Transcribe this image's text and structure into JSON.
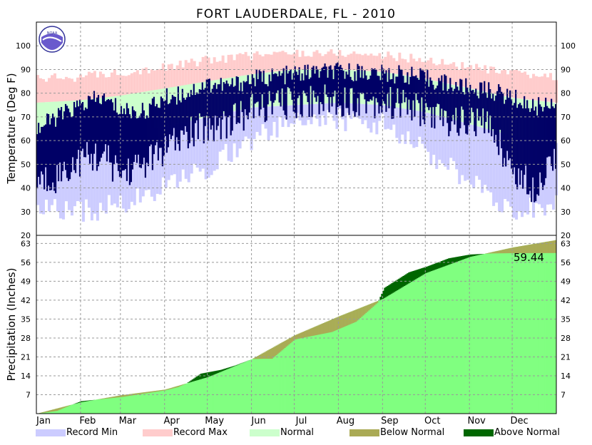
{
  "chart_data": [
    {
      "type": "area",
      "title": "FORT LAUDERDALE, FL - 2010",
      "ylabel": "Temperature (Deg F)",
      "ylim": [
        20,
        110
      ],
      "yticks": [
        20,
        30,
        40,
        50,
        60,
        70,
        80,
        90,
        100
      ],
      "categories": [
        "Jan",
        "Feb",
        "Mar",
        "Apr",
        "May",
        "Jun",
        "Jul",
        "Aug",
        "Sep",
        "Oct",
        "Nov",
        "Dec"
      ],
      "grid": true,
      "series": [
        {
          "name": "Record Max",
          "color": "#ffcccc",
          "x": [
            1,
            32,
            60,
            91,
            121,
            152,
            182,
            213,
            244,
            274,
            305,
            335,
            365
          ],
          "values": [
            86,
            87,
            89,
            91,
            94,
            96,
            97,
            97,
            96,
            94,
            91,
            88,
            87
          ]
        },
        {
          "name": "Normal",
          "color": "#ccffcc",
          "band": true,
          "x": [
            1,
            32,
            60,
            91,
            121,
            152,
            182,
            213,
            244,
            274,
            305,
            335,
            365
          ],
          "high": [
            76,
            77,
            79,
            82,
            85,
            88,
            90,
            90,
            89,
            86,
            82,
            78,
            76
          ],
          "low": [
            59,
            60,
            63,
            66,
            70,
            74,
            75,
            76,
            75,
            72,
            67,
            62,
            59
          ]
        },
        {
          "name": "Record Min",
          "color": "#ccccff",
          "x": [
            1,
            32,
            60,
            91,
            121,
            152,
            182,
            213,
            244,
            274,
            305,
            335,
            365
          ],
          "values": [
            32,
            30,
            33,
            40,
            49,
            61,
            68,
            69,
            67,
            55,
            42,
            31,
            32
          ]
        },
        {
          "name": "Actual",
          "color": "#000066",
          "x": [
            1,
            15,
            32,
            46,
            60,
            75,
            91,
            105,
            121,
            136,
            152,
            167,
            182,
            197,
            213,
            228,
            244,
            259,
            274,
            289,
            305,
            320,
            335,
            350,
            365
          ],
          "high": [
            65,
            70,
            75,
            78,
            73,
            72,
            78,
            80,
            84,
            83,
            86,
            87,
            88,
            89,
            89,
            89,
            88,
            88,
            86,
            84,
            82,
            81,
            78,
            74,
            77
          ],
          "low": [
            42,
            45,
            52,
            54,
            46,
            50,
            56,
            62,
            66,
            68,
            73,
            75,
            76,
            77,
            77,
            77,
            76,
            75,
            72,
            68,
            68,
            66,
            47,
            40,
            55
          ]
        }
      ]
    },
    {
      "type": "area",
      "ylabel": "Precipitation (Inches)",
      "ylim": [
        0,
        66
      ],
      "yticks": [
        7,
        14,
        21,
        28,
        35,
        42,
        49,
        56,
        63
      ],
      "categories": [
        "Jan",
        "Feb",
        "Mar",
        "Apr",
        "May",
        "Jun",
        "Jul",
        "Aug",
        "Sep",
        "Oct",
        "Nov",
        "Dec"
      ],
      "grid": true,
      "annotation": "59.44",
      "series": [
        {
          "name": "Normal",
          "color": "#80ff80",
          "x": [
            1,
            32,
            60,
            91,
            121,
            152,
            182,
            213,
            244,
            274,
            305,
            335,
            365
          ],
          "values": [
            0,
            4.2,
            6.8,
            8.9,
            13.5,
            20.2,
            29.0,
            36.0,
            42.5,
            52.0,
            58.0,
            61.5,
            64.2
          ]
        },
        {
          "name": "Actual",
          "color": "#000000",
          "x": [
            1,
            15,
            25,
            32,
            60,
            91,
            100,
            106,
            116,
            130,
            140,
            152,
            160,
            166,
            182,
            188,
            208,
            225,
            240,
            245,
            262,
            275,
            290,
            305,
            320,
            335,
            365
          ],
          "values": [
            0,
            1.0,
            3.2,
            4.6,
            6.1,
            8.6,
            9.8,
            11.2,
            14.8,
            16.2,
            17.8,
            20.2,
            20.3,
            20.3,
            27.4,
            28.1,
            30.2,
            34.0,
            41.0,
            46.6,
            52.3,
            54.5,
            57.5,
            58.9,
            59.3,
            59.4,
            59.44
          ]
        }
      ]
    }
  ],
  "legend": [
    {
      "label": "Record Min",
      "color": "#ccccff"
    },
    {
      "label": "Record Max",
      "color": "#ffcccc"
    },
    {
      "label": "Normal",
      "color": "#ccffcc"
    },
    {
      "label": "Below Normal",
      "color": "#aaaa55"
    },
    {
      "label": "Above Normal",
      "color": "#006600"
    }
  ],
  "colors": {
    "below_normal": "#aaaa55",
    "above_normal": "#006600",
    "grid": "#999999"
  },
  "logo": {
    "text": "NOAA",
    "icon": "noaa-logo-icon"
  }
}
